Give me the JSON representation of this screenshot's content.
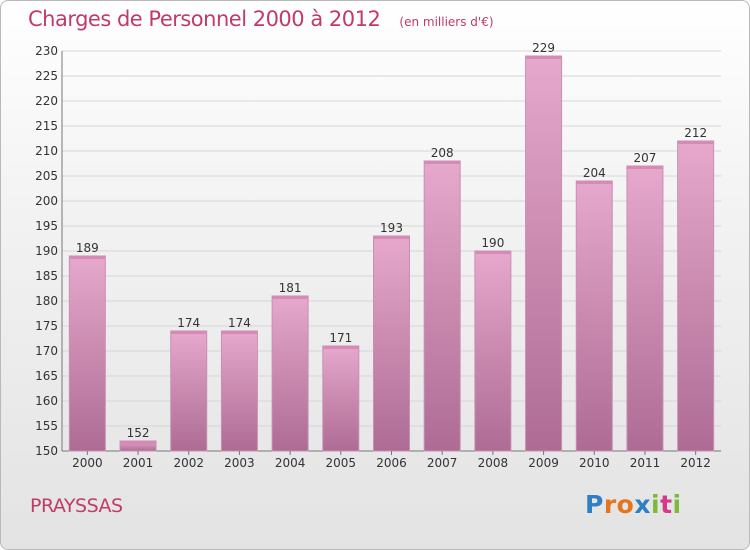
{
  "header": {
    "title": "Charges de Personnel 2000 à 2012",
    "subtitle": "(en milliers d'€)"
  },
  "footer": {
    "place": "PRAYSSAS",
    "brand": "Proxiti",
    "brand_colors": [
      "#2e7fc4",
      "#e3761d",
      "#e3761d",
      "#2e7fc4",
      "#7fb93a",
      "#d33b8a",
      "#7fb93a"
    ]
  },
  "colors": {
    "bar_top": "#e6a8cc",
    "bar_bottom": "#ae6c94",
    "text_accent": "#c23a6a"
  },
  "chart_data": {
    "type": "bar",
    "categories": [
      "2000",
      "2001",
      "2002",
      "2003",
      "2004",
      "2005",
      "2006",
      "2007",
      "2008",
      "2009",
      "2010",
      "2011",
      "2012"
    ],
    "values": [
      189,
      152,
      174,
      174,
      181,
      171,
      193,
      208,
      190,
      229,
      204,
      207,
      212
    ],
    "ylim": [
      150,
      230
    ],
    "yticks": [
      150,
      155,
      160,
      165,
      170,
      175,
      180,
      185,
      190,
      195,
      200,
      205,
      210,
      215,
      220,
      225,
      230
    ],
    "grid": true
  }
}
